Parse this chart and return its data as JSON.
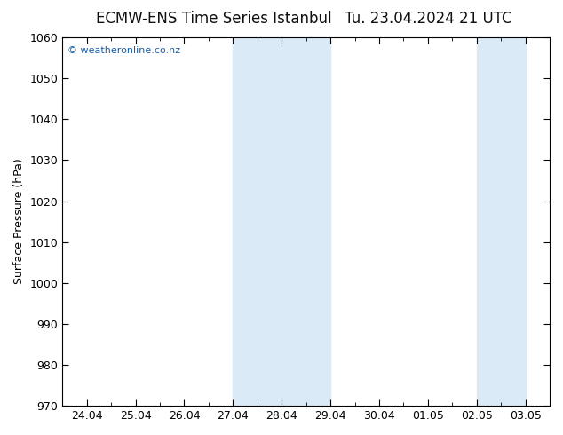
{
  "title_left": "ECMW-ENS Time Series Istanbul",
  "title_right": "Tu. 23.04.2024 21 UTC",
  "ylabel": "Surface Pressure (hPa)",
  "ylim": [
    970,
    1060
  ],
  "yticks": [
    970,
    980,
    990,
    1000,
    1010,
    1020,
    1030,
    1040,
    1050,
    1060
  ],
  "xtick_labels": [
    "24.04",
    "25.04",
    "26.04",
    "27.04",
    "28.04",
    "29.04",
    "30.04",
    "01.05",
    "02.05",
    "03.05"
  ],
  "shade_color": "#daeaf7",
  "background_color": "#ffffff",
  "plot_bg_color": "#ffffff",
  "border_color": "#000000",
  "watermark_text": "© weatheronline.co.nz",
  "watermark_color": "#1a5fa8",
  "title_fontsize": 12,
  "ylabel_fontsize": 9,
  "tick_fontsize": 9,
  "band1_x_start": 3,
  "band1_x_end": 5,
  "band2_x_start": 8,
  "band2_x_end": 9,
  "xlim": [
    -0.5,
    9.5
  ]
}
